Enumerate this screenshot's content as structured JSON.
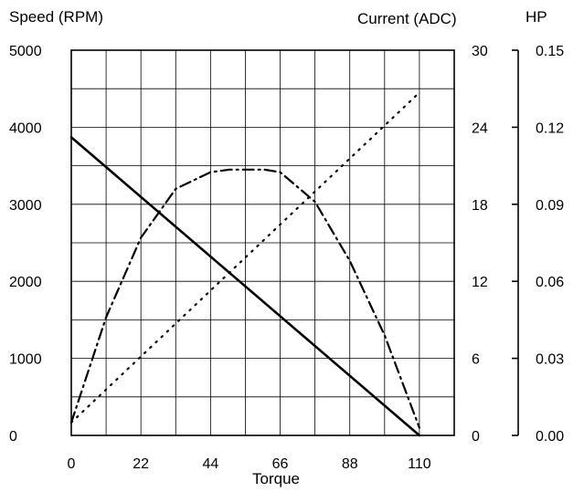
{
  "chart_data": {
    "type": "line",
    "title": "",
    "xlabel": "Torque",
    "xlim": [
      0,
      121
    ],
    "x_ticks": [
      "0",
      "22",
      "44",
      "66",
      "88",
      "110"
    ],
    "axes": {
      "speed": {
        "label": "Speed (RPM)",
        "ylim": [
          0,
          5000
        ],
        "ticks": [
          "0",
          "1000",
          "2000",
          "3000",
          "4000",
          "5000"
        ]
      },
      "current": {
        "label": "Current (ADC)",
        "ylim": [
          0,
          30
        ],
        "ticks": [
          "0",
          "6",
          "12",
          "18",
          "24",
          "30"
        ]
      },
      "hp": {
        "label": "HP",
        "ylim": [
          0,
          0.15
        ],
        "ticks": [
          "0.00",
          "0.03",
          "0.06",
          "0.09",
          "0.12",
          "0.15"
        ]
      }
    },
    "grid": true,
    "legend": "none",
    "series": [
      {
        "axis": "speed",
        "style": "solid",
        "x": [
          0,
          110
        ],
        "y": [
          3870,
          0
        ]
      },
      {
        "axis": "current",
        "style": "dotted",
        "x": [
          0,
          110
        ],
        "y": [
          1,
          26.7
        ]
      },
      {
        "axis": "hp",
        "style": "dashdot",
        "x": [
          0,
          11,
          22,
          33,
          44,
          50,
          55,
          61,
          66,
          77,
          88,
          99,
          110
        ],
        "y": [
          0.005,
          0.046,
          0.077,
          0.096,
          0.1025,
          0.1035,
          0.1035,
          0.1035,
          0.1025,
          0.091,
          0.068,
          0.039,
          0.003
        ]
      }
    ]
  }
}
